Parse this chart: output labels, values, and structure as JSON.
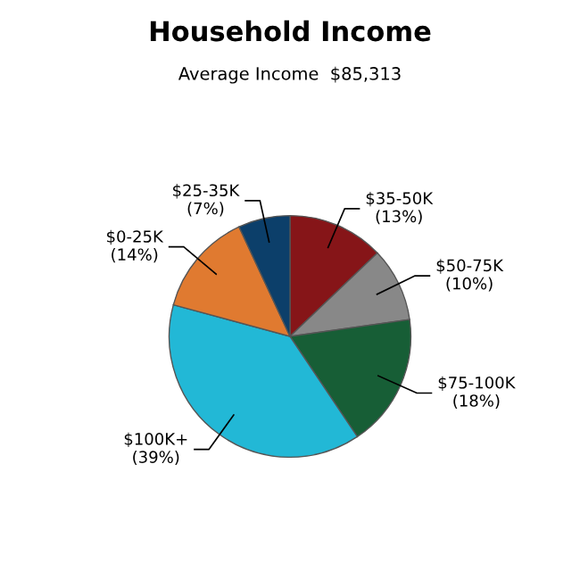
{
  "chart_data": {
    "type": "pie",
    "title": "Household Income",
    "subtitle": "Average Income  $85,313",
    "categories": [
      "$35-50K",
      "$50-75K",
      "$75-100K",
      "$100K+",
      "$0-25K",
      "$25-35K"
    ],
    "values": [
      13,
      10,
      18,
      39,
      14,
      7
    ],
    "value_labels": [
      "(13%)",
      "(10%)",
      "(18%)",
      "(39%)",
      "(14%)",
      "(7%)"
    ],
    "colors": [
      "#861518",
      "#888888",
      "#175e36",
      "#22b8d6",
      "#e07a30",
      "#0c3f6a"
    ]
  }
}
